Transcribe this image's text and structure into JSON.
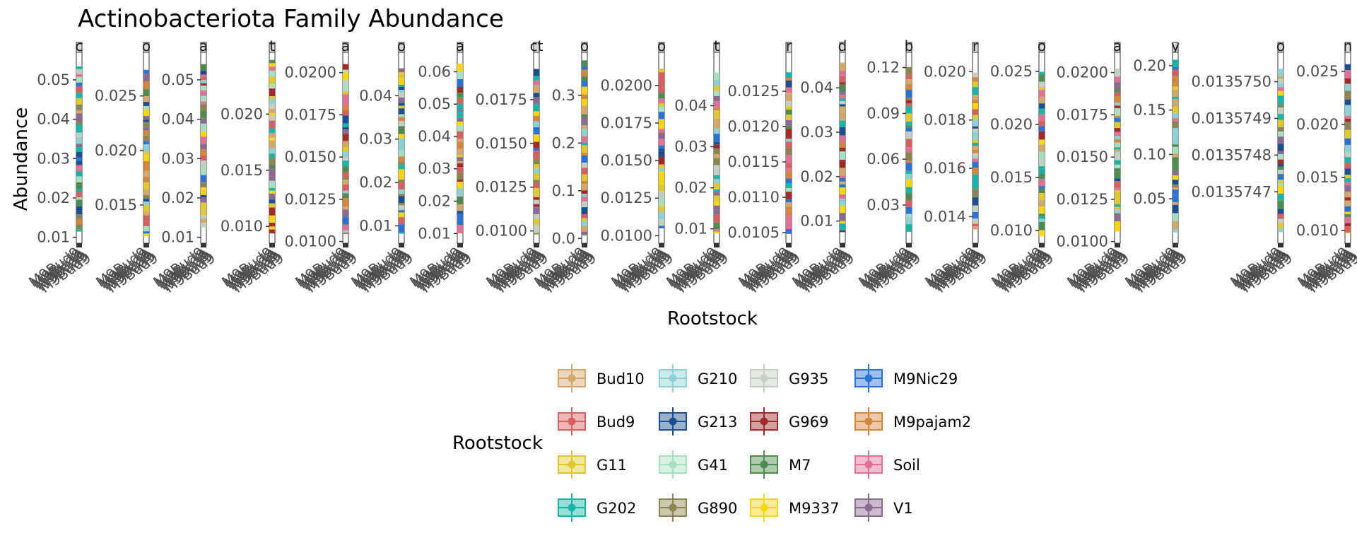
{
  "chart_data": {
    "type": "boxplot",
    "title": "Actinobacteriota Family Abundance",
    "xlabel": "Rootstock",
    "ylabel": "Abundance",
    "legend_title": "Rootstock",
    "legend_position": "bottom",
    "grid": false,
    "x_tick_text": "M9Bud9",
    "rootstocks": [
      {
        "name": "Bud10",
        "color": "#d4a76a"
      },
      {
        "name": "Bud9",
        "color": "#d65f5f"
      },
      {
        "name": "G11",
        "color": "#e0c930"
      },
      {
        "name": "G202",
        "color": "#17b5a8"
      },
      {
        "name": "G210",
        "color": "#8fd0d4"
      },
      {
        "name": "G213",
        "color": "#1c4f91"
      },
      {
        "name": "G41",
        "color": "#a8dfc0"
      },
      {
        "name": "G890",
        "color": "#8c8450"
      },
      {
        "name": "G935",
        "color": "#c3cfc3"
      },
      {
        "name": "G969",
        "color": "#a32a2a"
      },
      {
        "name": "M7",
        "color": "#4f8a4f"
      },
      {
        "name": "M9337",
        "color": "#f5d60f"
      },
      {
        "name": "M9Nic29",
        "color": "#2a72d4"
      },
      {
        "name": "M9pajam2",
        "color": "#d4863a"
      },
      {
        "name": "Soil",
        "color": "#e07095"
      },
      {
        "name": "V1",
        "color": "#8a6a91"
      }
    ],
    "facets": [
      {
        "strip": "c",
        "ylim": [
          0.0085,
          0.057
        ],
        "ticks": [
          "0.01",
          "0.02",
          "0.03",
          "0.04",
          "0.05"
        ],
        "tick_values": [
          0.01,
          0.02,
          0.03,
          0.04,
          0.05
        ]
      },
      {
        "strip": "o",
        "ylim": [
          0.0115,
          0.029
        ],
        "ticks": [
          "0.015",
          "0.020",
          "0.025"
        ],
        "tick_values": [
          0.015,
          0.02,
          0.025
        ]
      },
      {
        "strip": "a",
        "ylim": [
          0.0085,
          0.057
        ],
        "ticks": [
          "0.01",
          "0.02",
          "0.03",
          "0.04",
          "0.05"
        ],
        "tick_values": [
          0.01,
          0.02,
          0.03,
          0.04,
          0.05
        ]
      },
      {
        "strip": "t",
        "ylim": [
          0.0085,
          0.0255
        ],
        "ticks": [
          "0.010",
          "0.015",
          "0.020"
        ],
        "tick_values": [
          0.01,
          0.015,
          0.02
        ]
      },
      {
        "strip": "a",
        "ylim": [
          0.0099,
          0.0212
        ],
        "ticks": [
          "0.0100",
          "0.0125",
          "0.0150",
          "0.0175",
          "0.0200"
        ],
        "tick_values": [
          0.01,
          0.0125,
          0.015,
          0.0175,
          0.02
        ]
      },
      {
        "strip": "o",
        "ylim": [
          0.006,
          0.05
        ],
        "ticks": [
          "0.01",
          "0.02",
          "0.03",
          "0.04"
        ],
        "tick_values": [
          0.01,
          0.02,
          0.03,
          0.04
        ]
      },
      {
        "strip": "a",
        "ylim": [
          0.007,
          0.066
        ],
        "ticks": [
          "0.01",
          "0.02",
          "0.03",
          "0.04",
          "0.05",
          "0.06"
        ],
        "tick_values": [
          0.01,
          0.02,
          0.03,
          0.04,
          0.05,
          0.06
        ]
      },
      {
        "strip": "ct",
        "ylim": [
          0.0093,
          0.0202
        ],
        "ticks": [
          "0.0100",
          "0.0125",
          "0.0150",
          "0.0175"
        ],
        "tick_values": [
          0.01,
          0.0125,
          0.015,
          0.0175
        ]
      },
      {
        "strip": "o",
        "ylim": [
          -0.01,
          0.39
        ],
        "ticks": [
          "0.0",
          "0.1",
          "0.2",
          "0.3"
        ],
        "tick_values": [
          0.0,
          0.1,
          0.2,
          0.3
        ]
      },
      {
        "strip": "o",
        "ylim": [
          0.0095,
          0.0222
        ],
        "ticks": [
          "0.0100",
          "0.0125",
          "0.0150",
          "0.0175",
          "0.0200"
        ],
        "tick_values": [
          0.01,
          0.0125,
          0.015,
          0.0175,
          0.02
        ]
      },
      {
        "strip": "t",
        "ylim": [
          0.0065,
          0.053
        ],
        "ticks": [
          "0.01",
          "0.02",
          "0.03",
          "0.04"
        ],
        "tick_values": [
          0.01,
          0.02,
          0.03,
          0.04
        ]
      },
      {
        "strip": "r",
        "ylim": [
          0.01035,
          0.01305
        ],
        "ticks": [
          "0.0105",
          "0.0110",
          "0.0115",
          "0.0120",
          "0.0125"
        ],
        "tick_values": [
          0.0105,
          0.011,
          0.0115,
          0.012,
          0.0125
        ]
      },
      {
        "strip": "d",
        "ylim": [
          0.005,
          0.048
        ],
        "ticks": [
          "0.01",
          "0.02",
          "0.03",
          "0.04"
        ],
        "tick_values": [
          0.01,
          0.02,
          0.03,
          0.04
        ]
      },
      {
        "strip": "b",
        "ylim": [
          0.005,
          0.13
        ],
        "ticks": [
          "0.03",
          "0.06",
          "0.09",
          "0.12"
        ],
        "tick_values": [
          0.03,
          0.06,
          0.09,
          0.12
        ]
      },
      {
        "strip": "r",
        "ylim": [
          0.0129,
          0.0208
        ],
        "ticks": [
          "0.014",
          "0.016",
          "0.018",
          "0.020"
        ],
        "tick_values": [
          0.014,
          0.016,
          0.018,
          0.02
        ]
      },
      {
        "strip": "o",
        "ylim": [
          0.0088,
          0.0268
        ],
        "ticks": [
          "0.010",
          "0.015",
          "0.020",
          "0.025"
        ],
        "tick_values": [
          0.01,
          0.015,
          0.02,
          0.025
        ]
      },
      {
        "strip": "a",
        "ylim": [
          0.0099,
          0.0212
        ],
        "ticks": [
          "0.0100",
          "0.0125",
          "0.0150",
          "0.0175",
          "0.0200"
        ],
        "tick_values": [
          0.01,
          0.0125,
          0.015,
          0.0175,
          0.02
        ]
      },
      {
        "strip": "y",
        "ylim": [
          0.0,
          0.215
        ],
        "ticks": [
          "0.05",
          "0.10",
          "0.15",
          "0.20"
        ],
        "tick_values": [
          0.05,
          0.1,
          0.15,
          0.2
        ]
      },
      {
        "strip": "o",
        "ylim": [
          0.01357456,
          0.01357508
        ],
        "ticks": [
          "0.0135747",
          "0.0135748",
          "0.0135749",
          "0.0135750"
        ],
        "tick_values": [
          0.0135747,
          0.0135748,
          0.0135749,
          0.013575
        ]
      },
      {
        "strip": "n",
        "ylim": [
          0.0088,
          0.0268
        ],
        "ticks": [
          "0.010",
          "0.015",
          "0.020",
          "0.025"
        ],
        "tick_values": [
          0.01,
          0.015,
          0.02,
          0.025
        ]
      }
    ]
  }
}
